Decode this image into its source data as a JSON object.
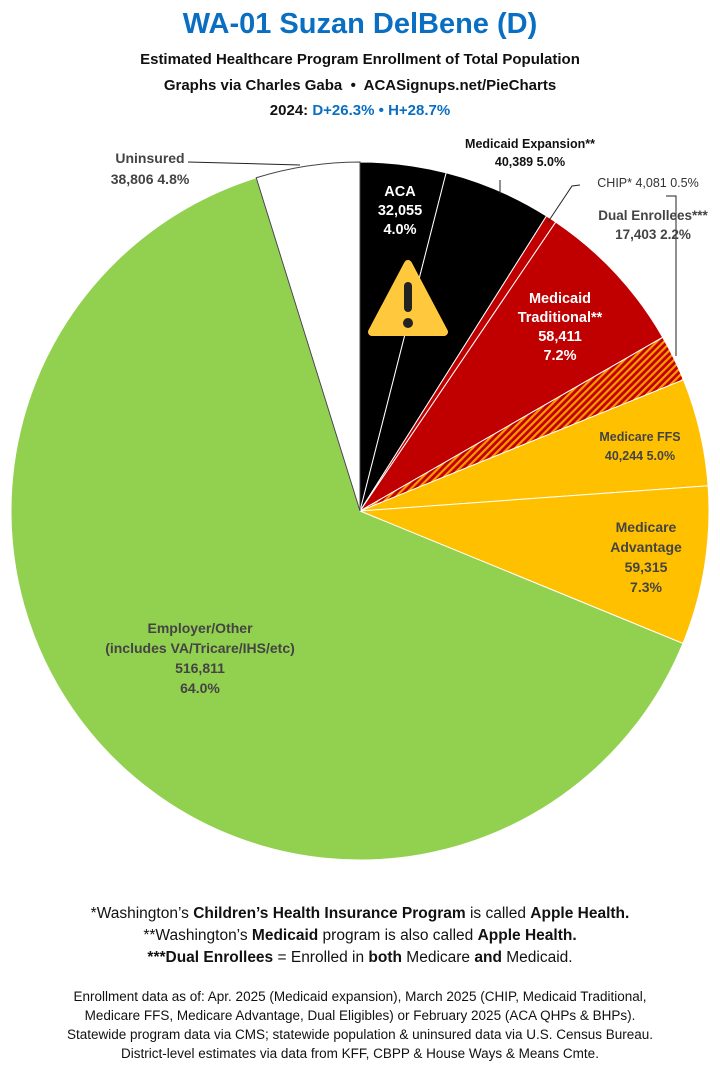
{
  "header": {
    "title": "WA-01 Suzan DelBene (D)",
    "subtitle": "Estimated Healthcare Program Enrollment of Total Population",
    "credit_left": "Graphs via Charles Gaba",
    "credit_sep": "•",
    "credit_right": "ACASignups.net/PieCharts",
    "year_label": "2024:",
    "d_margin": "D+26.3%",
    "h_margin": "H+28.7%"
  },
  "chart_data": {
    "type": "pie",
    "start": "12 o'clock, clockwise",
    "slices": [
      {
        "name": "ACA",
        "value": 32055,
        "pct": "4.0%",
        "color": "#000000",
        "icon": "warning-icon"
      },
      {
        "name": "Medicaid Expansion**",
        "value": 40389,
        "pct": "5.0%",
        "color": "#000000"
      },
      {
        "name": "CHIP*",
        "value": 4081,
        "pct": "0.5%",
        "color": "#c00000"
      },
      {
        "name": "Medicaid Traditional**",
        "value": 58411,
        "pct": "7.2%",
        "color": "#c00000"
      },
      {
        "name": "Dual Enrollees***",
        "value": 17403,
        "pct": "2.2%",
        "color": "#e04000",
        "hatched": true
      },
      {
        "name": "Medicare FFS",
        "value": 40244,
        "pct": "5.0%",
        "color": "#ffc000"
      },
      {
        "name": "Medicare Advantage",
        "value": 59315,
        "pct": "7.3%",
        "color": "#ffc000"
      },
      {
        "name": "Employer/Other",
        "name2": "(includes VA/Tricare/IHS/etc)",
        "value": 516811,
        "pct": "64.0%",
        "color": "#92d050"
      },
      {
        "name": "Uninsured",
        "value": 38806,
        "pct": "4.8%",
        "color": "#ffffff"
      }
    ],
    "labels": {
      "aca": [
        "ACA",
        "32,055",
        "4.0%"
      ],
      "expansion": [
        "Medicaid Expansion**",
        "40,389 5.0%"
      ],
      "chip": "CHIP* 4,081 0.5%",
      "dual": [
        "Dual Enrollees***",
        "17,403 2.2%"
      ],
      "traditional": [
        "Medicaid",
        "Traditional**",
        "58,411",
        "7.2%"
      ],
      "ffs": [
        "Medicare FFS",
        "40,244 5.0%"
      ],
      "advantage": [
        "Medicare",
        "Advantage",
        "59,315",
        "7.3%"
      ],
      "employer": [
        "Employer/Other",
        "(includes VA/Tricare/IHS/etc)",
        "516,811",
        "64.0%"
      ],
      "uninsured": [
        "Uninsured",
        "38,806 4.8%"
      ]
    }
  },
  "footnotes": {
    "n1": [
      "*Washington’s ",
      "Children’s Health Insurance Program",
      " is called ",
      "Apple Health."
    ],
    "n2": [
      "**Washington’s ",
      "Medicaid",
      " program is also called ",
      "Apple Health."
    ],
    "n3": [
      "***Dual Enrollees",
      " = Enrolled in ",
      "both",
      " Medicare ",
      "and",
      " Medicaid."
    ],
    "sources": [
      "Enrollment data as of: Apr. 2025 (Medicaid expansion), March 2025 (CHIP, Medicaid Traditional,",
      "Medicare FFS, Medicare Advantage, Dual Eligibles) or February 2025 (ACA QHPs & BHPs).",
      "Statewide program data via CMS; statewide population & uninsured data via U.S. Census Bureau.",
      "District-level estimates via data from KFF, CBPP & House Ways & Means Cmte."
    ]
  }
}
